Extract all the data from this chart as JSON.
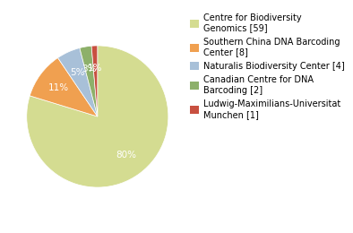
{
  "labels": [
    "Centre for Biodiversity\nGenomics [59]",
    "Southern China DNA Barcoding\nCenter [8]",
    "Naturalis Biodiversity Center [4]",
    "Canadian Centre for DNA\nBarcoding [2]",
    "Ludwig-Maximilians-Universitat\nMunchen [1]"
  ],
  "values": [
    59,
    8,
    4,
    2,
    1
  ],
  "colors": [
    "#d4dc91",
    "#f0a050",
    "#a8c0d8",
    "#8db06a",
    "#c85040"
  ],
  "pct_colors": [
    "white",
    "white",
    "white",
    "white",
    "white"
  ],
  "background_color": "#ffffff",
  "legend_fontsize": 7.0,
  "autopct_fontsize": 7.5,
  "startangle": 90
}
